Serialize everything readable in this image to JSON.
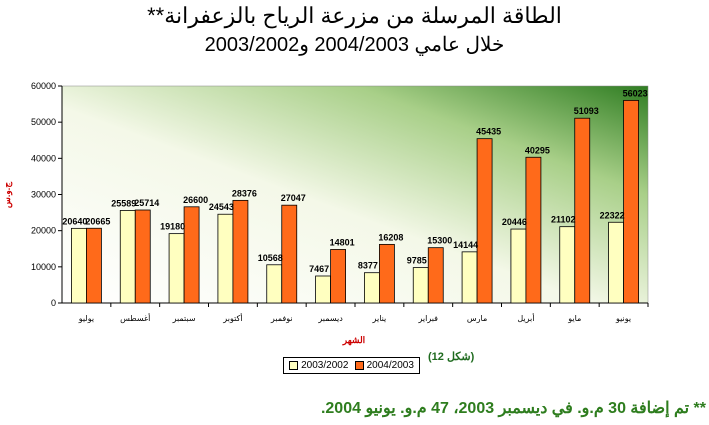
{
  "header": {
    "title": "الطاقة المرسلة من مزرعة الرياح بالزعفرانة**",
    "subtitle": "خلال عامي 2004/2003 و2003/2002"
  },
  "figure_label": "(شكل 12)",
  "footnote": "** تم إضافة 30 م.و. في ديسمبر 2003، 47 م.و. يونيو 2004.",
  "colors": {
    "series_2002": "#ffffc0",
    "series_2003": "#ff6a1a",
    "plot_green": "#3a8c2a",
    "axis_title_red": "#cc0000"
  },
  "chart_data": {
    "type": "bar",
    "categories": [
      "يوليو",
      "أغسطس",
      "سبتمبر",
      "أكتوبر",
      "نوفمبر",
      "ديسمبر",
      "يناير",
      "فبراير",
      "مارس",
      "أبريل",
      "مايو",
      "يونيو"
    ],
    "series": [
      {
        "name": "2003/2002",
        "values": [
          20640,
          25589,
          19180,
          24543,
          10568,
          7467,
          8377,
          9785,
          14144,
          20446,
          21102,
          22322
        ]
      },
      {
        "name": "2004/2003",
        "values": [
          20665,
          25714,
          26600,
          28376,
          27047,
          14801,
          16208,
          15300,
          45435,
          40295,
          51093,
          56023
        ]
      }
    ],
    "xlabel": "الشهر",
    "ylabel": "ج.و.س",
    "ylim": [
      0,
      60000
    ],
    "yticks": [
      0,
      10000,
      20000,
      30000,
      40000,
      50000,
      60000
    ],
    "legend_position": "bottom",
    "grid": false
  }
}
